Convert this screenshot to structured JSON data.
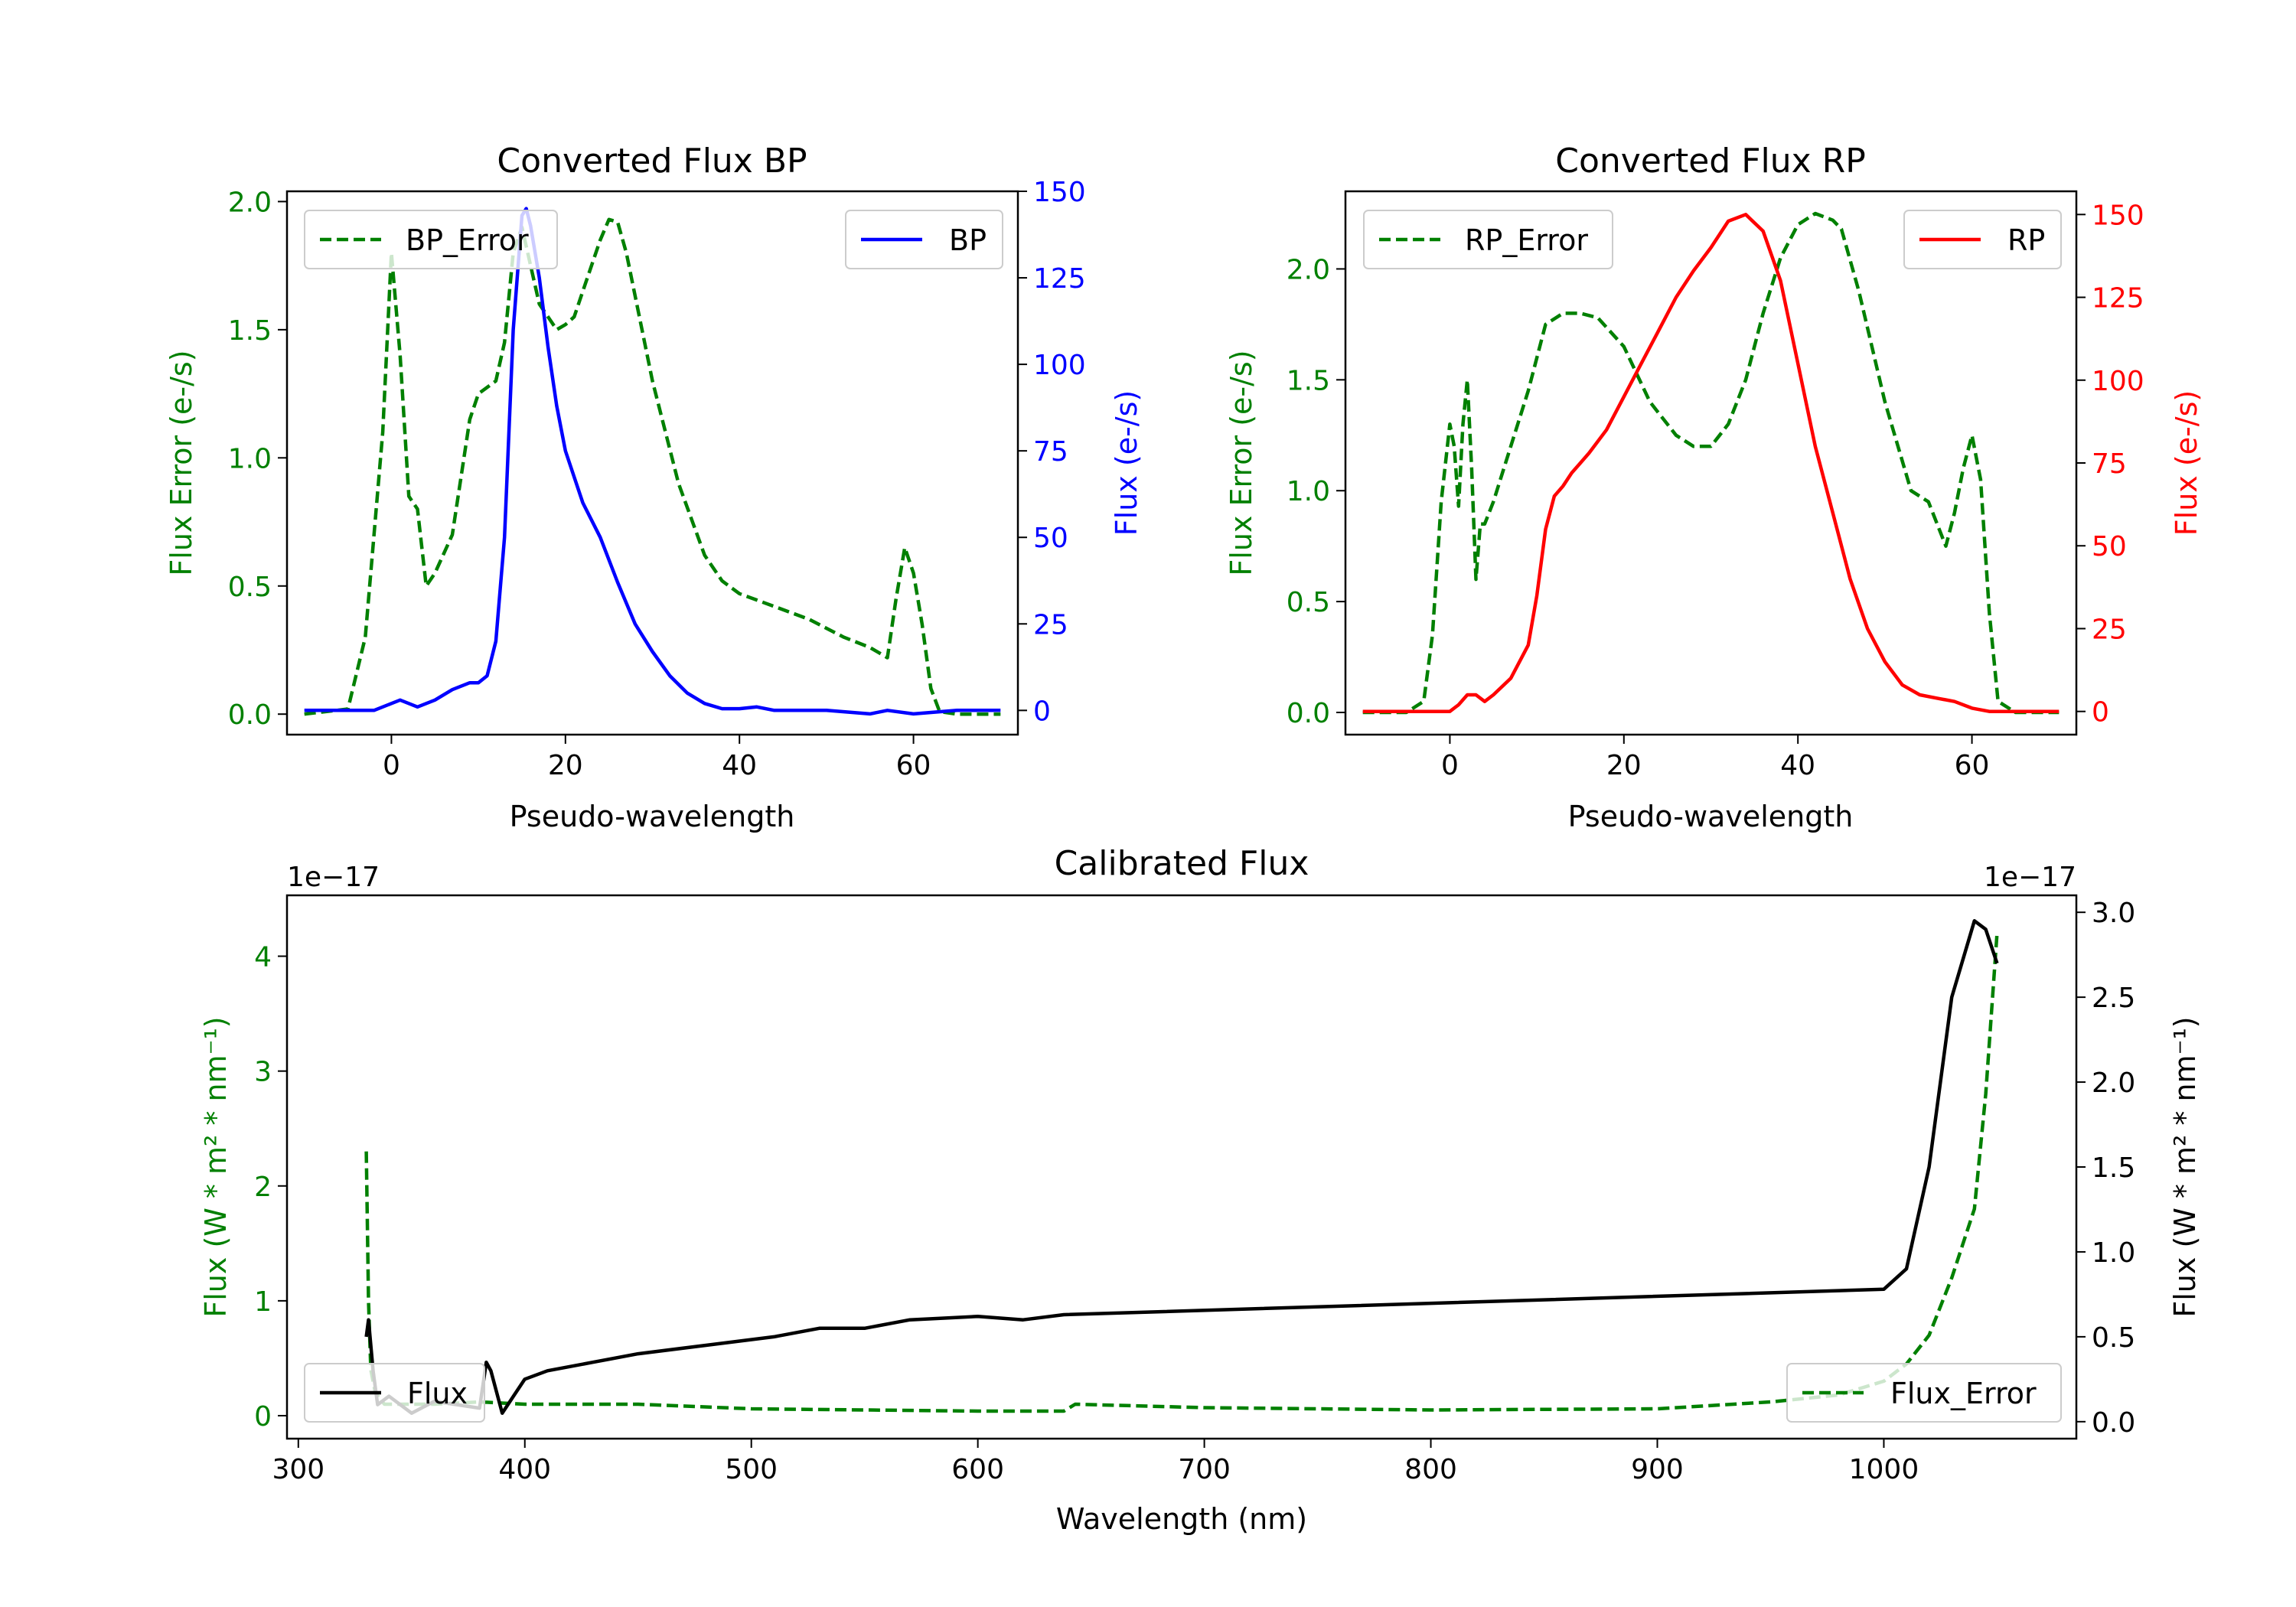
{
  "chart_data": [
    {
      "id": "bp",
      "type": "line",
      "title": "Converted Flux BP",
      "xlabel": "Pseudo-wavelength",
      "ylabel_left": "Flux Error (e-/s)",
      "ylabel_right": "Flux (e-/s)",
      "xlim": [
        -12,
        72
      ],
      "ylim_left": [
        -0.08,
        2.04
      ],
      "ylim_right": [
        -7,
        150
      ],
      "xticks": [
        0,
        20,
        40,
        60
      ],
      "yticks_left": [
        0.0,
        0.5,
        1.0,
        1.5,
        2.0
      ],
      "yticks_right": [
        0,
        25,
        50,
        75,
        100,
        125,
        150
      ],
      "colors": {
        "left_axis": "#008000",
        "right_axis": "#0000ff"
      },
      "legend_left": {
        "label": "BP_Error",
        "position": "upper-left"
      },
      "legend_right": {
        "label": "BP",
        "position": "upper-right"
      },
      "series": [
        {
          "name": "BP_Error",
          "axis": "left",
          "color": "#008000",
          "style": "dashed",
          "x": [
            -10,
            -5,
            -3,
            -1,
            0,
            1,
            2,
            3,
            4,
            5,
            7,
            9,
            10,
            12,
            13,
            14,
            15,
            16,
            17,
            18,
            19,
            20,
            21,
            22,
            24,
            25,
            26,
            27,
            30,
            33,
            36,
            38,
            40,
            44,
            48,
            52,
            55,
            57,
            58,
            59,
            60,
            61,
            62,
            63,
            65,
            70
          ],
          "y": [
            0.0,
            0.02,
            0.3,
            1.1,
            1.8,
            1.4,
            0.85,
            0.8,
            0.5,
            0.55,
            0.7,
            1.15,
            1.25,
            1.3,
            1.45,
            1.8,
            1.9,
            1.75,
            1.6,
            1.55,
            1.5,
            1.52,
            1.55,
            1.65,
            1.85,
            1.93,
            1.92,
            1.8,
            1.3,
            0.9,
            0.62,
            0.52,
            0.47,
            0.42,
            0.37,
            0.3,
            0.26,
            0.22,
            0.45,
            0.65,
            0.55,
            0.35,
            0.1,
            0.01,
            0.0,
            0.0
          ]
        },
        {
          "name": "BP",
          "axis": "right",
          "color": "#0000ff",
          "style": "solid",
          "x": [
            -10,
            -2,
            0,
            1,
            2,
            3,
            5,
            7,
            9,
            10,
            11,
            12,
            13,
            14,
            15,
            15.5,
            16,
            17,
            18,
            19,
            20,
            22,
            24,
            26,
            28,
            30,
            32,
            34,
            36,
            38,
            40,
            42,
            44,
            50,
            55,
            57,
            60,
            65,
            70
          ],
          "y": [
            0,
            0,
            2,
            3,
            2,
            1,
            3,
            6,
            8,
            8,
            10,
            20,
            50,
            110,
            143,
            145,
            140,
            125,
            105,
            88,
            75,
            60,
            50,
            37,
            25,
            17,
            10,
            5,
            2,
            0.5,
            0.5,
            1,
            0,
            0,
            -1,
            0,
            -1,
            0,
            0
          ]
        }
      ]
    },
    {
      "id": "rp",
      "type": "line",
      "title": "Converted Flux RP",
      "xlabel": "Pseudo-wavelength",
      "ylabel_left": "Flux Error (e-/s)",
      "ylabel_right": "Flux (e-/s)",
      "xlim": [
        -12,
        72
      ],
      "ylim_left": [
        -0.1,
        2.35
      ],
      "ylim_right": [
        -7,
        157
      ],
      "xticks": [
        0,
        20,
        40,
        60
      ],
      "yticks_left": [
        0.0,
        0.5,
        1.0,
        1.5,
        2.0
      ],
      "yticks_right": [
        0,
        25,
        50,
        75,
        100,
        125,
        150
      ],
      "colors": {
        "left_axis": "#008000",
        "right_axis": "#ff0000"
      },
      "legend_left": {
        "label": "RP_Error",
        "position": "upper-left"
      },
      "legend_right": {
        "label": "RP",
        "position": "upper-right"
      },
      "series": [
        {
          "name": "RP_Error",
          "axis": "left",
          "color": "#008000",
          "style": "dashed",
          "x": [
            -10,
            -5,
            -3,
            -2,
            -1,
            0,
            0.5,
            1,
            1.5,
            2,
            2.5,
            3,
            3.5,
            4,
            5,
            7,
            9,
            11,
            13,
            15,
            17,
            20,
            23,
            26,
            28,
            30,
            32,
            34,
            36,
            38,
            40,
            42,
            44,
            45,
            47,
            50,
            53,
            55,
            56,
            57,
            58,
            59,
            60,
            61,
            62,
            63,
            65,
            70
          ],
          "y": [
            0.0,
            0.0,
            0.05,
            0.35,
            0.95,
            1.3,
            1.2,
            0.93,
            1.3,
            1.5,
            1.1,
            0.6,
            0.85,
            0.85,
            0.95,
            1.2,
            1.45,
            1.75,
            1.8,
            1.8,
            1.78,
            1.65,
            1.4,
            1.25,
            1.2,
            1.2,
            1.3,
            1.5,
            1.8,
            2.05,
            2.2,
            2.25,
            2.22,
            2.18,
            1.9,
            1.4,
            1.0,
            0.95,
            0.85,
            0.75,
            0.9,
            1.1,
            1.25,
            1.05,
            0.45,
            0.05,
            0.0,
            0.0
          ]
        },
        {
          "name": "RP",
          "axis": "right",
          "color": "#ff0000",
          "style": "solid",
          "x": [
            -10,
            -3,
            0,
            1,
            2,
            3,
            4,
            5,
            7,
            9,
            10,
            11,
            12,
            13,
            14,
            15,
            16,
            18,
            20,
            22,
            24,
            26,
            28,
            30,
            32,
            34,
            36,
            38,
            40,
            42,
            44,
            46,
            48,
            50,
            52,
            54,
            56,
            58,
            60,
            62,
            65,
            70
          ],
          "y": [
            0,
            0,
            0,
            2,
            5,
            5,
            3,
            5,
            10,
            20,
            35,
            55,
            65,
            68,
            72,
            75,
            78,
            85,
            95,
            105,
            115,
            125,
            133,
            140,
            148,
            150,
            145,
            130,
            105,
            80,
            60,
            40,
            25,
            15,
            8,
            5,
            4,
            3,
            1,
            0,
            0,
            0
          ]
        }
      ]
    },
    {
      "id": "calibrated",
      "type": "line",
      "title": "Calibrated Flux",
      "xlabel": "Wavelength (nm)",
      "ylabel_left": "Flux (W * m² * nm⁻¹)",
      "ylabel_right": "Flux (W * m² * nm⁻¹)",
      "left_offset_text": "1e−17",
      "right_offset_text": "1e−17",
      "xlim": [
        295,
        1085
      ],
      "ylim_left": [
        -0.2,
        4.53
      ],
      "ylim_right": [
        -0.1,
        3.1
      ],
      "xticks": [
        300,
        400,
        500,
        600,
        700,
        800,
        900,
        1000
      ],
      "yticks_left": [
        0,
        1,
        2,
        3,
        4
      ],
      "yticks_right": [
        0.0,
        0.5,
        1.0,
        1.5,
        2.0,
        2.5,
        3.0
      ],
      "colors": {
        "left_axis": "#008000",
        "right_axis": "#000000"
      },
      "legend_left": {
        "label": "Flux",
        "position": "lower-left"
      },
      "legend_right": {
        "label": "Flux_Error",
        "position": "lower-right"
      },
      "series": [
        {
          "name": "Flux_Error",
          "axis": "left",
          "color": "#008000",
          "style": "dashed",
          "x": [
            330,
            331,
            332,
            334,
            338,
            350,
            360,
            380,
            400,
            450,
            500,
            550,
            600,
            638,
            643,
            700,
            800,
            900,
            950,
            980,
            1000,
            1010,
            1020,
            1030,
            1040,
            1045,
            1050
          ],
          "y": [
            2.3,
            1.0,
            0.4,
            0.2,
            0.1,
            0.1,
            0.1,
            0.12,
            0.1,
            0.1,
            0.06,
            0.05,
            0.04,
            0.04,
            0.1,
            0.07,
            0.05,
            0.06,
            0.12,
            0.18,
            0.3,
            0.45,
            0.7,
            1.2,
            1.8,
            2.8,
            4.2
          ]
        },
        {
          "name": "Flux",
          "axis": "right",
          "color": "#000000",
          "style": "solid",
          "x": [
            330,
            331,
            333,
            335,
            340,
            350,
            360,
            370,
            380,
            383,
            385,
            390,
            395,
            400,
            410,
            430,
            450,
            480,
            510,
            530,
            550,
            570,
            600,
            620,
            638,
            1000,
            1010,
            1020,
            1030,
            1040,
            1045,
            1050
          ],
          "y": [
            0.5,
            0.6,
            0.3,
            0.1,
            0.15,
            0.05,
            0.12,
            0.1,
            0.08,
            0.35,
            0.3,
            0.05,
            0.15,
            0.25,
            0.3,
            0.35,
            0.4,
            0.45,
            0.5,
            0.55,
            0.55,
            0.6,
            0.62,
            0.6,
            0.63,
            0.78,
            0.9,
            1.5,
            2.5,
            2.95,
            2.9,
            2.7
          ]
        }
      ]
    }
  ]
}
